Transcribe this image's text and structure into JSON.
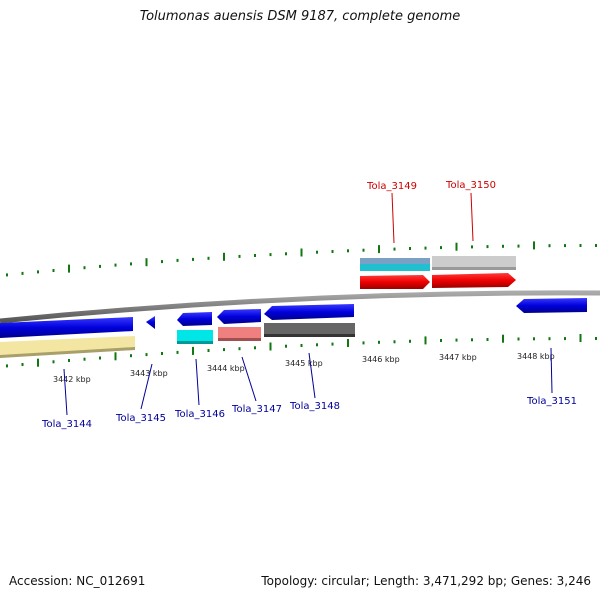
{
  "map": {
    "title": "Tolumonas auensis DSM 9187, complete genome",
    "accession": "Accession: NC_012691",
    "summary": "Topology: circular; Length: 3,471,292 bp; Genes: 3,246"
  },
  "axis": {
    "ticks": [
      "3442 kbp",
      "3443 kbp",
      "3444 kbp",
      "3445 kbp",
      "3446 kbp",
      "3447 kbp",
      "3448 kbp"
    ]
  },
  "genes": [
    {
      "id": "Tola_3144",
      "strand": "reverse",
      "color": "#0000cc"
    },
    {
      "id": "Tola_3145",
      "strand": "reverse",
      "color": "#0000cc"
    },
    {
      "id": "Tola_3146",
      "strand": "reverse",
      "color": "#0000cc"
    },
    {
      "id": "Tola_3147",
      "strand": "reverse",
      "color": "#0000cc"
    },
    {
      "id": "Tola_3148",
      "strand": "reverse",
      "color": "#0000cc"
    },
    {
      "id": "Tola_3149",
      "strand": "forward",
      "color": "#dd0000"
    },
    {
      "id": "Tola_3150",
      "strand": "forward",
      "color": "#dd0000"
    },
    {
      "id": "Tola_3151",
      "strand": "reverse",
      "color": "#0000cc"
    }
  ],
  "colors": {
    "forward_label": "#cc0000",
    "reverse_label": "#000099",
    "ticks": "#117711",
    "backbone": "#777777"
  }
}
